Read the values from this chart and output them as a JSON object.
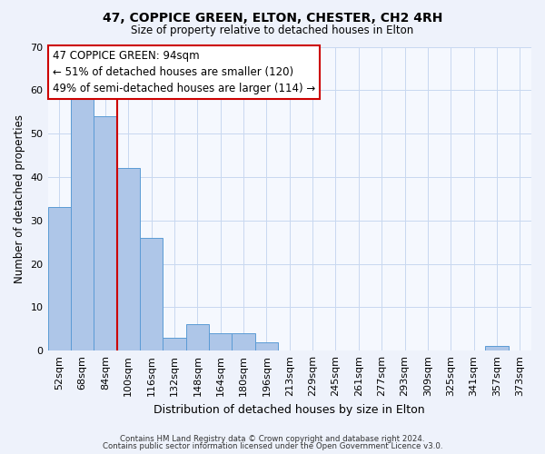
{
  "title": "47, COPPICE GREEN, ELTON, CHESTER, CH2 4RH",
  "subtitle": "Size of property relative to detached houses in Elton",
  "xlabel": "Distribution of detached houses by size in Elton",
  "ylabel": "Number of detached properties",
  "bar_labels": [
    "52sqm",
    "68sqm",
    "84sqm",
    "100sqm",
    "116sqm",
    "132sqm",
    "148sqm",
    "164sqm",
    "180sqm",
    "196sqm",
    "213sqm",
    "229sqm",
    "245sqm",
    "261sqm",
    "277sqm",
    "293sqm",
    "309sqm",
    "325sqm",
    "341sqm",
    "357sqm",
    "373sqm"
  ],
  "bar_values": [
    33,
    58,
    54,
    42,
    26,
    3,
    6,
    4,
    4,
    2,
    0,
    0,
    0,
    0,
    0,
    0,
    0,
    0,
    0,
    1,
    0
  ],
  "bar_color": "#aec6e8",
  "bar_edge_color": "#5b9bd5",
  "vline_color": "#cc0000",
  "ylim": [
    0,
    70
  ],
  "yticks": [
    0,
    10,
    20,
    30,
    40,
    50,
    60,
    70
  ],
  "annotation_title": "47 COPPICE GREEN: 94sqm",
  "annotation_line1": "← 51% of detached houses are smaller (120)",
  "annotation_line2": "49% of semi-detached houses are larger (114) →",
  "annotation_box_color": "#ffffff",
  "annotation_box_edge": "#cc0000",
  "footer1": "Contains HM Land Registry data © Crown copyright and database right 2024.",
  "footer2": "Contains public sector information licensed under the Open Government Licence v3.0.",
  "bg_color": "#eef2fb",
  "plot_bg_color": "#f5f8fe",
  "grid_color": "#c8d8f0"
}
